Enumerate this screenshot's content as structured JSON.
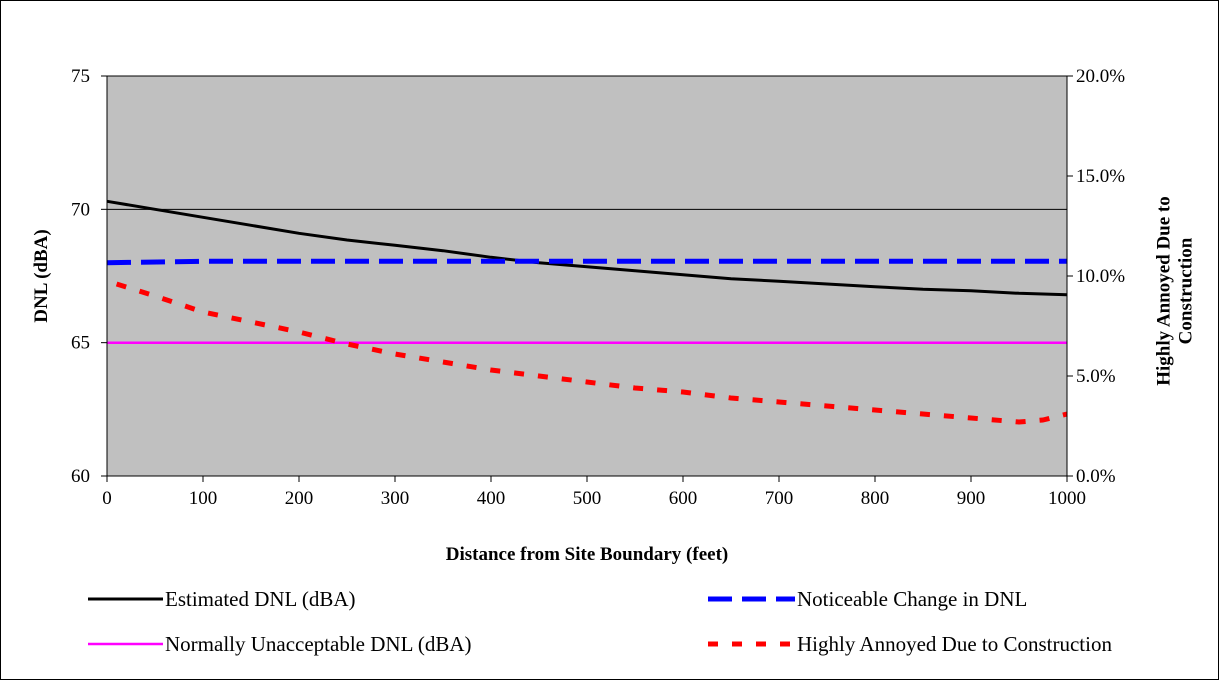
{
  "chart_data": {
    "type": "line",
    "xlabel": "Distance from Site Boundary (feet)",
    "ylabel": "DNL (dBA)",
    "y2label": "Highly Annoyed Due to Construction",
    "xlim": [
      0,
      1000
    ],
    "ylim": [
      60,
      75
    ],
    "y2lim": [
      0,
      0.2
    ],
    "xticks": [
      "0",
      "100",
      "200",
      "300",
      "400",
      "500",
      "600",
      "700",
      "800",
      "900",
      "1000"
    ],
    "yticks": [
      "60",
      "65",
      "70",
      "75"
    ],
    "y2ticks": [
      "0.0%",
      "5.0%",
      "10.0%",
      "15.0%",
      "20.0%"
    ],
    "plot_background": "#c0c0c0",
    "gridlines": "horizontal",
    "legend_position": "bottom",
    "series": [
      {
        "name": "Estimated DNL (dBA)",
        "axis": "left",
        "color": "#000000",
        "style": "solid",
        "x": [
          0,
          50,
          100,
          150,
          200,
          250,
          300,
          350,
          400,
          450,
          500,
          550,
          600,
          650,
          700,
          750,
          800,
          850,
          900,
          950,
          1000
        ],
        "y": [
          70.3,
          70.0,
          69.7,
          69.4,
          69.1,
          68.85,
          68.65,
          68.45,
          68.2,
          68.0,
          67.85,
          67.7,
          67.55,
          67.4,
          67.3,
          67.2,
          67.1,
          67.0,
          66.95,
          66.85,
          66.8
        ]
      },
      {
        "name": "Noticeable Change in DNL",
        "axis": "left",
        "color": "#0000ff",
        "style": "dashed",
        "x": [
          0,
          100,
          200,
          300,
          400,
          500,
          600,
          700,
          800,
          900,
          1000
        ],
        "y": [
          68.0,
          68.05,
          68.05,
          68.05,
          68.05,
          68.05,
          68.05,
          68.05,
          68.05,
          68.05,
          68.05
        ]
      },
      {
        "name": "Normally Unacceptable DNL (dBA)",
        "axis": "left",
        "color": "#ff00ff",
        "style": "solid",
        "x": [
          0,
          1000
        ],
        "y": [
          65,
          65
        ]
      },
      {
        "name": "Highly Annoyed Due to Construction",
        "axis": "right",
        "color": "#ff0000",
        "style": "dotted",
        "x": [
          10,
          50,
          100,
          150,
          200,
          250,
          300,
          350,
          400,
          450,
          500,
          550,
          600,
          650,
          700,
          750,
          800,
          850,
          900,
          950,
          975,
          1000
        ],
        "y": [
          0.096,
          0.09,
          0.082,
          0.077,
          0.072,
          0.066,
          0.061,
          0.057,
          0.053,
          0.05,
          0.047,
          0.044,
          0.042,
          0.039,
          0.037,
          0.035,
          0.033,
          0.031,
          0.029,
          0.027,
          0.028,
          0.031
        ]
      }
    ]
  }
}
